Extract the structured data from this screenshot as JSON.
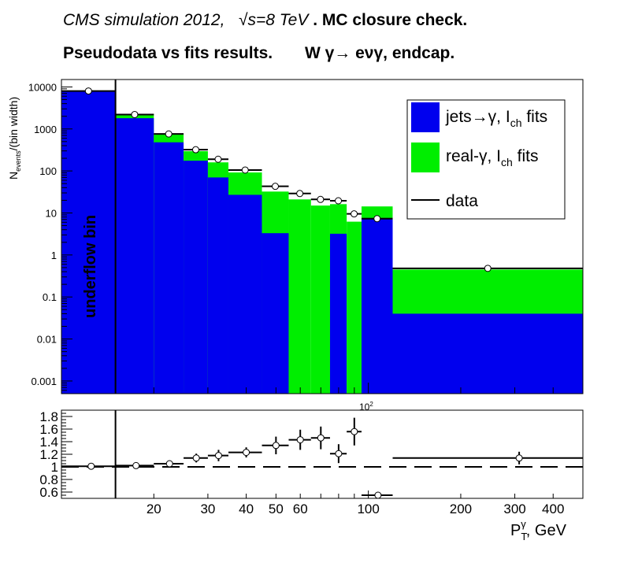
{
  "title": {
    "line1_italic": "CMS simulation 2012,",
    "line1_sqrt": "√s=8 TeV",
    "line1_bold": ". MC closure check.",
    "line2_part1": "Pseudodata vs fits results.",
    "line2_part2": "W  γ→ eνγ, endcap."
  },
  "colors": {
    "jets": "#0000ee",
    "real": "#00ee00",
    "data": "#000000"
  },
  "chart_data": [
    {
      "type": "bar",
      "stacked": true,
      "xscale": "log",
      "yscale": "log",
      "ylabel": "N_events/(bin width)",
      "ylim": [
        0.0005,
        15000
      ],
      "y_tick_labels": [
        "0.001",
        "0.01",
        "0.1",
        "1",
        "10",
        "100",
        "1000",
        "10000"
      ],
      "x_exponent_label": "10^2",
      "annotation": "underflow bin",
      "legend": {
        "placement": "top-right",
        "entries": [
          "jets→γ, I_ch fits",
          "real-γ, I_ch fits",
          "data"
        ]
      },
      "bins": [
        {
          "xlow": 10,
          "xhigh": 15,
          "jets": 7800,
          "real": 250,
          "data": 8000,
          "underflow": true
        },
        {
          "xlow": 15,
          "xhigh": 20,
          "jets": 1800,
          "real": 450,
          "data": 2200
        },
        {
          "xlow": 20,
          "xhigh": 25,
          "jets": 480,
          "real": 270,
          "data": 760
        },
        {
          "xlow": 25,
          "xhigh": 30,
          "jets": 175,
          "real": 120,
          "data": 320
        },
        {
          "xlow": 30,
          "xhigh": 35,
          "jets": 70,
          "real": 90,
          "data": 190
        },
        {
          "xlow": 35,
          "xhigh": 45,
          "jets": 27,
          "real": 65,
          "data": 105
        },
        {
          "xlow": 45,
          "xhigh": 55,
          "jets": 3.3,
          "real": 29,
          "data": 43
        },
        {
          "xlow": 55,
          "xhigh": 65,
          "jets": 0,
          "real": 21,
          "data": 29
        },
        {
          "xlow": 65,
          "xhigh": 75,
          "jets": 0,
          "real": 15,
          "data": 21
        },
        {
          "xlow": 75,
          "xhigh": 85,
          "jets": 3.2,
          "real": 13,
          "data": 19.5
        },
        {
          "xlow": 85,
          "xhigh": 95,
          "jets": 0,
          "real": 6.2,
          "data": 9.5
        },
        {
          "xlow": 95,
          "xhigh": 120,
          "jets": 7.6,
          "real": 6.7,
          "data": 7.3
        },
        {
          "xlow": 120,
          "xhigh": 500,
          "jets": 0.04,
          "real": 0.41,
          "data": 0.48
        }
      ]
    },
    {
      "type": "scatter",
      "xscale": "log",
      "ylim": [
        0.5,
        1.9
      ],
      "y_tick_labels": [
        "0.6",
        "0.8",
        "1",
        "1.2",
        "1.4",
        "1.6",
        "1.8"
      ],
      "x_tick_labels": [
        "20",
        "30",
        "40",
        "50",
        "60",
        "100",
        "200",
        "300",
        "400"
      ],
      "xlabel": "P_T^γ, GeV",
      "reference_line": 1,
      "points": [
        {
          "x": 12.5,
          "xlow": 10,
          "xhigh": 15,
          "y": 1.01,
          "err": 0.01
        },
        {
          "x": 17.5,
          "xlow": 15,
          "xhigh": 20,
          "y": 1.02,
          "err": 0.03
        },
        {
          "x": 22.5,
          "xlow": 20,
          "xhigh": 25,
          "y": 1.05,
          "err": 0.04
        },
        {
          "x": 27.5,
          "xlow": 25,
          "xhigh": 30,
          "y": 1.14,
          "err": 0.07
        },
        {
          "x": 32.5,
          "xlow": 30,
          "xhigh": 35,
          "y": 1.18,
          "err": 0.09
        },
        {
          "x": 40,
          "xlow": 35,
          "xhigh": 45,
          "y": 1.23,
          "err": 0.08
        },
        {
          "x": 50,
          "xlow": 45,
          "xhigh": 55,
          "y": 1.34,
          "err": 0.14
        },
        {
          "x": 60,
          "xlow": 55,
          "xhigh": 65,
          "y": 1.43,
          "err": 0.16
        },
        {
          "x": 70,
          "xlow": 65,
          "xhigh": 75,
          "y": 1.46,
          "err": 0.18
        },
        {
          "x": 80,
          "xlow": 75,
          "xhigh": 85,
          "y": 1.21,
          "err": 0.15
        },
        {
          "x": 90,
          "xlow": 85,
          "xhigh": 95,
          "y": 1.56,
          "err": 0.22
        },
        {
          "x": 107.5,
          "xlow": 95,
          "xhigh": 120,
          "y": 0.55,
          "err": 0.05
        },
        {
          "x": 310,
          "xlow": 120,
          "xhigh": 500,
          "y": 1.14,
          "err": 0.1
        }
      ]
    }
  ]
}
